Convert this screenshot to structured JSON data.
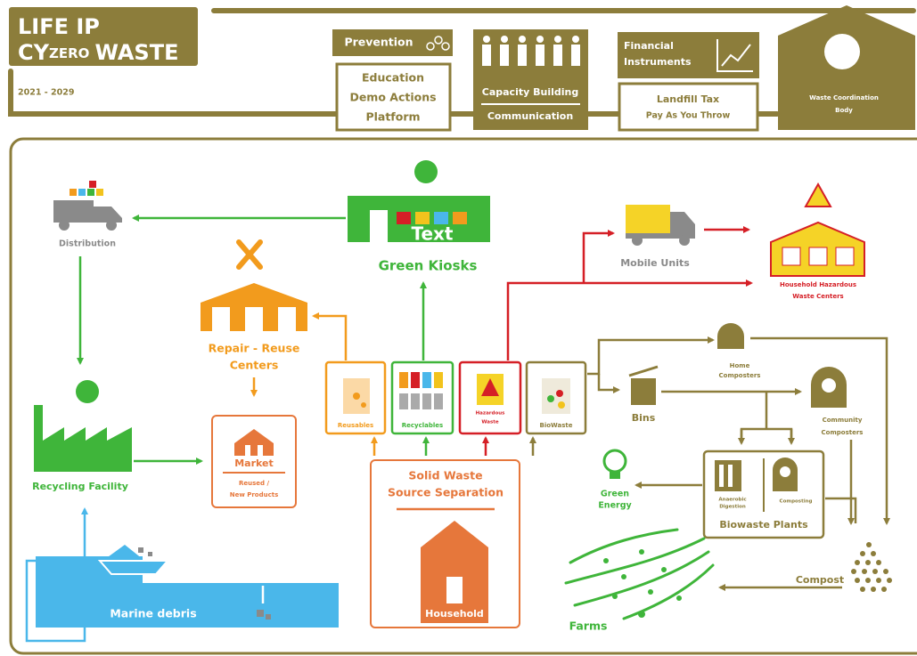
{
  "header": {
    "title": "LIFE IP",
    "subtitle": [
      "CY",
      "ZERO",
      "WASTE"
    ],
    "period": "2021 - 2029"
  },
  "pillars": {
    "prevention": {
      "title": "Prevention",
      "items": [
        "Education",
        "Demo Actions",
        "Platform"
      ]
    },
    "capacity": {
      "items": [
        "Capacity Building",
        "Communication"
      ]
    },
    "financial": {
      "title": [
        "Financial",
        "Instruments"
      ],
      "items": [
        "Landfill Tax",
        "Pay As You Throw"
      ]
    },
    "coordination": {
      "label": [
        "Waste Coordination",
        "Body"
      ]
    }
  },
  "nodes": {
    "distribution": "Distribution",
    "green_kiosks": {
      "label": "Green Kiosks",
      "sign": "Text"
    },
    "mobile_units": "Mobile Units",
    "hazardous_centers": [
      "Household Hazardous",
      "Waste Centers"
    ],
    "repair_reuse": [
      "Repair - Reuse",
      "Centers"
    ],
    "bins_fractions": [
      "Reusables",
      "Recyclables",
      [
        "Hazardous",
        "Waste"
      ],
      "BioWaste"
    ],
    "home_composters": [
      "Home",
      "Composters"
    ],
    "bins": "Bins",
    "community_composters": [
      "Community",
      "Composters"
    ],
    "market": {
      "title": "Market",
      "subtitle": [
        "Reused /",
        "New Products"
      ]
    },
    "recycling_facility": "Recycling Facility",
    "source_separation": {
      "title": [
        "Solid Waste",
        "Source Separation"
      ],
      "household": "Household"
    },
    "green_energy": [
      "Green",
      "Energy"
    ],
    "biowaste_plants": {
      "title": "Biowaste Plants",
      "parts": [
        [
          "Anaerobic",
          "Digestion"
        ],
        "Composting"
      ]
    },
    "compost": "Compost",
    "marine_debris": "Marine debris",
    "farms": "Farms"
  }
}
